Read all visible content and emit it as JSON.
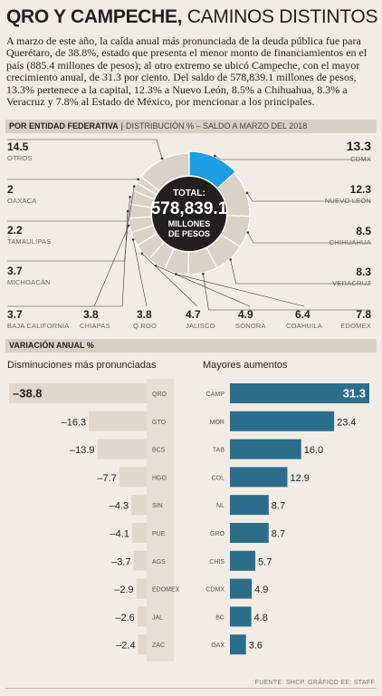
{
  "header": {
    "title_bold": "QRO Y CAMPECHE,",
    "title_light": "CAMINOS DISTINTOS",
    "intro": "A marzo de este año, la caída anual más pronunciada de la deuda pública fue para Querétaro, de 38.8%, estado que presenta el menor monto de financiamientos en el país (885.4 millones de pesos); al otro extremo se ubicó Campeche, con el mayor crecimiento anual, de 31.3 por ciento. Del saldo de 578,839.1 millones de pesos, 13.3% pertenece a la capital, 12.3% a Nuevo León, 8.5% a Chihuahua, 8.3% a Veracruz y 7.8% al Estado de México, por mencionar a los principales."
  },
  "section1": {
    "label": "POR ENTIDAD FEDERATIVA",
    "separator": "|",
    "sub": "DISTRIBUCIÓN % – SALDO A MARZO DEL 2018"
  },
  "donut_center": {
    "label": "TOTAL:",
    "value": "578,839.1",
    "unit1": "MILLONES",
    "unit2": "DE PESOS"
  },
  "section2": {
    "label": "VARIACIÓN ANUAL %"
  },
  "footer": {
    "source": "FUENTE: SHCP. GRÁFICO EE: STAFF"
  },
  "colors": {
    "accent": "#1b9ee5",
    "gray": "#d9d2c6",
    "teal": "#2b6e8c",
    "tan": "#e0d8ca",
    "dark": "#231f20"
  },
  "chart_data": [
    {
      "type": "pie",
      "title": "",
      "slices": [
        {
          "label": "CDMX",
          "value": 13.3,
          "highlight": true
        },
        {
          "label": "NUEVO LEÓN",
          "value": 12.3
        },
        {
          "label": "CHIHUAHUA",
          "value": 8.5
        },
        {
          "label": "VERACRUZ",
          "value": 8.3
        },
        {
          "label": "EDOMEX",
          "value": 7.8
        },
        {
          "label": "COAHUILA",
          "value": 6.4
        },
        {
          "label": "SONORA",
          "value": 4.9
        },
        {
          "label": "JALISCO",
          "value": 4.7
        },
        {
          "label": "Q.ROO",
          "value": 3.8
        },
        {
          "label": "CHIAPAS",
          "value": 3.8
        },
        {
          "label": "BAJA CALIFORNIA",
          "value": 3.7
        },
        {
          "label": "MICHOACÁN",
          "value": 3.7
        },
        {
          "label": "TAMAULIPAS",
          "value": 2.2
        },
        {
          "label": "OAXACA",
          "value": 2.0
        },
        {
          "label": "OTROS",
          "value": 14.5
        }
      ]
    },
    {
      "type": "bar",
      "title": "Disminuciones más pronunciadas",
      "categories": [
        "QRO",
        "GTO",
        "BCS",
        "HGO",
        "SIN",
        "PUE",
        "AGS",
        "EDOMEX",
        "JAL",
        "ZAC"
      ],
      "values": [
        -38.8,
        -16.3,
        -13.9,
        -7.7,
        -4.3,
        -4.1,
        -3.7,
        -2.9,
        -2.6,
        -2.4
      ],
      "labels": [
        "–38.8",
        "–16.3",
        "–13.9",
        "–7.7",
        "–4.3",
        "–4.1",
        "–3.7",
        "–2.9",
        "–2.6",
        "–2.4"
      ]
    },
    {
      "type": "bar",
      "title": "Mayores aumentos",
      "categories": [
        "CAMP",
        "MOR",
        "TAB",
        "COL",
        "NL",
        "GRO",
        "CHIS",
        "CDMX",
        "BC",
        "OAX"
      ],
      "values": [
        31.3,
        23.4,
        16.0,
        12.9,
        8.7,
        8.7,
        5.7,
        4.9,
        4.8,
        3.6
      ],
      "labels": [
        "31.3",
        "23.4",
        "16.0",
        "12.9",
        "8.7",
        "8.7",
        "5.7",
        "4.9",
        "4.8",
        "3.6"
      ]
    }
  ]
}
